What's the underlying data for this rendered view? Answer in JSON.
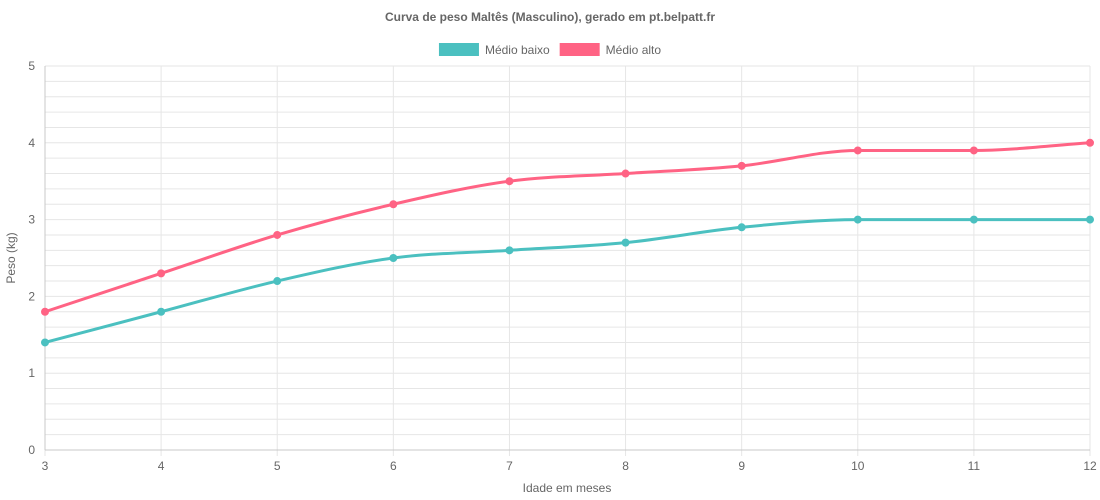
{
  "chart_data": {
    "type": "line",
    "title": "Curva de peso Maltês (Masculino), gerado em pt.belpatt.fr",
    "xlabel": "Idade em meses",
    "ylabel": "Peso (kg)",
    "x": [
      3,
      4,
      5,
      6,
      7,
      8,
      9,
      10,
      11,
      12
    ],
    "ylim": [
      0,
      5
    ],
    "yticks": [
      0,
      1,
      2,
      3,
      4,
      5
    ],
    "grid": true,
    "legend_position": "top",
    "series": [
      {
        "name": "Médio baixo",
        "color": "#4bc0c0",
        "values": [
          1.4,
          1.8,
          2.2,
          2.5,
          2.6,
          2.7,
          2.9,
          3.0,
          3.0,
          3.0
        ]
      },
      {
        "name": "Médio alto",
        "color": "#ff6384",
        "values": [
          1.8,
          2.3,
          2.8,
          3.2,
          3.5,
          3.6,
          3.7,
          3.9,
          3.9,
          4.0
        ]
      }
    ]
  },
  "colors": {
    "grid": "#e6e6e6",
    "axis": "#c8c8c8",
    "text": "#666666"
  }
}
